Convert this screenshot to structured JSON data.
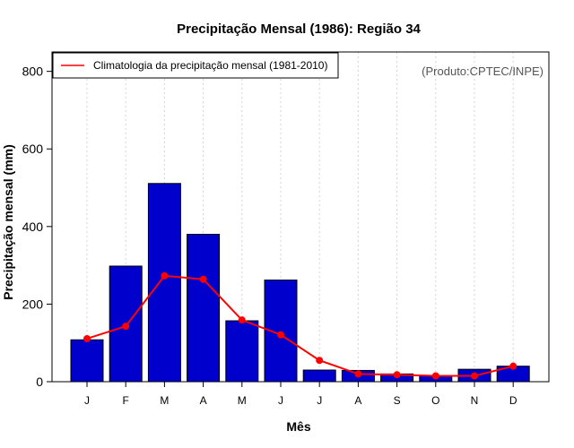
{
  "chart_data": {
    "type": "bar",
    "title": "Precipitação Mensal (1986): Região 34",
    "xlabel": "Mês",
    "ylabel": "Precipitação mensal (mm)",
    "ylim": [
      0,
      850
    ],
    "yticks": [
      0,
      200,
      400,
      600,
      800
    ],
    "ytick_labels": [
      "0",
      "200",
      "400",
      "600",
      "800"
    ],
    "categories": [
      "J",
      "F",
      "M",
      "A",
      "M",
      "J",
      "J",
      "A",
      "S",
      "O",
      "N",
      "D"
    ],
    "grid": "vertical dotted",
    "series": [
      {
        "name": "Precipitação mensal 1986",
        "kind": "bar",
        "color": "#0000CD",
        "values": [
          108,
          298,
          511,
          380,
          157,
          262,
          30,
          29,
          20,
          15,
          32,
          40
        ]
      },
      {
        "name": "Climatologia da precipitação mensal (1981-2010)",
        "kind": "line",
        "color": "#FF0000",
        "values": [
          111,
          143,
          273,
          264,
          159,
          121,
          55,
          20,
          18,
          15,
          15,
          40
        ]
      }
    ],
    "legend": {
      "position": "top-left",
      "entries": [
        "Climatologia da precipitação mensal (1981-2010)"
      ]
    },
    "annotation": "(Produto:CPTEC/INPE)"
  }
}
